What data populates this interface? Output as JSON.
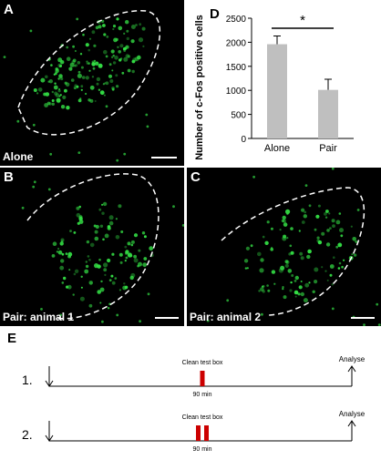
{
  "panels": {
    "a": {
      "label": "A",
      "caption": "Alone"
    },
    "b": {
      "label": "B",
      "caption": "Pair: animal 1"
    },
    "c": {
      "label": "C",
      "caption": "Pair: animal 2"
    }
  },
  "colors": {
    "cells": "#33dd44",
    "bar": "#bfbfbf",
    "event": "#cc0000"
  },
  "chart_data": {
    "type": "bar",
    "panel_label": "D",
    "categories": [
      "Alone",
      "Pair"
    ],
    "values": [
      1960,
      1010
    ],
    "errors": [
      170,
      220
    ],
    "ylabel": "Number of c-Fos positive cells",
    "ylim": [
      0,
      2500
    ],
    "yticks": [
      0,
      500,
      1000,
      1500,
      2000,
      2500
    ],
    "significance": "*",
    "grid": false
  },
  "timeline": {
    "label": "E",
    "rows": [
      {
        "number": "1.",
        "event_label": "Clean test box",
        "duration": "90 min",
        "end_label": "Analyse",
        "event_count": 1
      },
      {
        "number": "2.",
        "event_label": "Clean test box",
        "duration": "90 min",
        "end_label": "Analyse",
        "event_count": 2
      }
    ]
  }
}
